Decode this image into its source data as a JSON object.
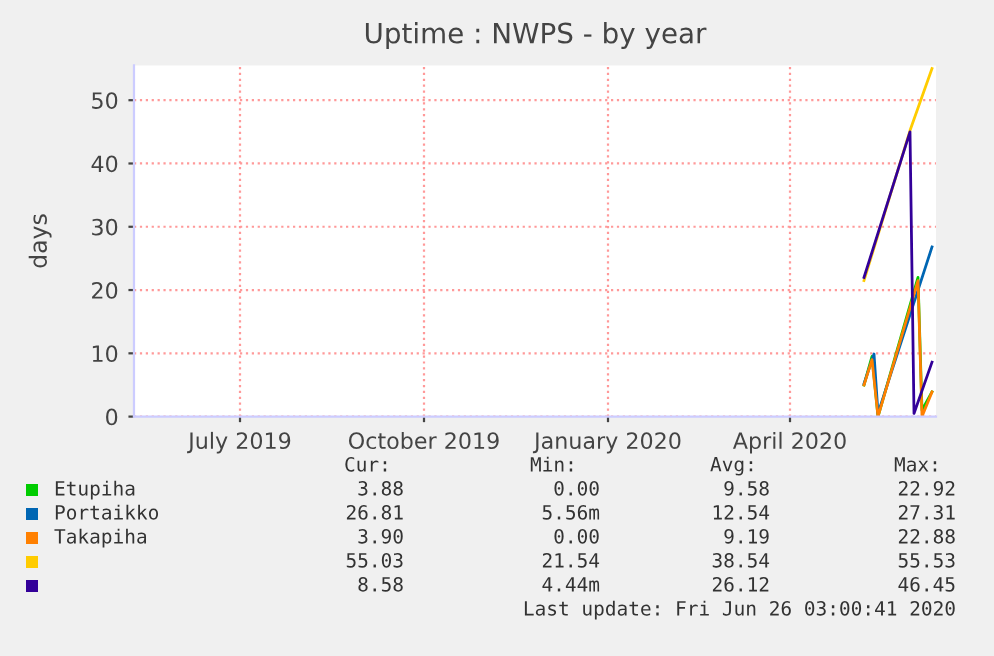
{
  "chart_data": {
    "type": "line",
    "title": "Uptime : NWPS - by year",
    "ylabel": "days",
    "xlim": [
      "2019-05-24",
      "2020-06-28"
    ],
    "xticks": [
      {
        "value": "2019-07-16",
        "label": "July 2019"
      },
      {
        "value": "2019-10-16",
        "label": "October 2019"
      },
      {
        "value": "2020-01-16",
        "label": "January 2020"
      },
      {
        "value": "2020-04-16",
        "label": "April 2020"
      }
    ],
    "ylim": [
      0,
      55.5
    ],
    "yticks": [
      0,
      10,
      20,
      30,
      40,
      50
    ],
    "grid": true,
    "legend": "bottom",
    "marker": "none",
    "line_style": "solid",
    "series": [
      {
        "name": "Etupiha",
        "color": "#00cc00",
        "x": [
          "2020-05-23",
          "2020-05-27",
          "2020-05-30",
          "2020-06-19",
          "2020-06-21",
          "2020-06-26"
        ],
        "values": [
          5,
          9.5,
          0,
          22,
          1,
          3.9
        ]
      },
      {
        "name": "Portaikko",
        "color": "#0066b3",
        "x": [
          "2020-05-23",
          "2020-05-28",
          "2020-05-30",
          "2020-06-26"
        ],
        "values": [
          5.2,
          9.9,
          0.5,
          26.8
        ]
      },
      {
        "name": "Takapiha",
        "color": "#ff8000",
        "x": [
          "2020-05-23",
          "2020-05-27",
          "2020-05-30",
          "2020-06-19",
          "2020-06-21",
          "2020-06-26"
        ],
        "values": [
          5,
          9,
          0,
          21.5,
          0,
          3.9
        ]
      },
      {
        "color": "#ffcc00",
        "x": [
          "2020-05-23",
          "2020-06-15",
          "2020-06-26"
        ],
        "values": [
          21.5,
          45.2,
          55.0
        ]
      },
      {
        "color": "#330099",
        "x": [
          "2020-05-23",
          "2020-06-15",
          "2020-06-17",
          "2020-06-26"
        ],
        "values": [
          22,
          45,
          0.5,
          8.6
        ]
      }
    ],
    "annotations": [
      "Cur:",
      "Min:",
      "Avg:",
      "Max:",
      "3.88",
      "0.00",
      "9.58",
      "22.92",
      "26.81",
      "5.56m",
      "12.54",
      "27.31",
      "3.90",
      "0.00",
      "9.19",
      "22.88",
      "55.03",
      "21.54",
      "38.54",
      "55.53",
      "8.58",
      "4.44m",
      "26.12",
      "46.45",
      "Last update: Fri Jun 26 03:00:41 2020"
    ]
  }
}
